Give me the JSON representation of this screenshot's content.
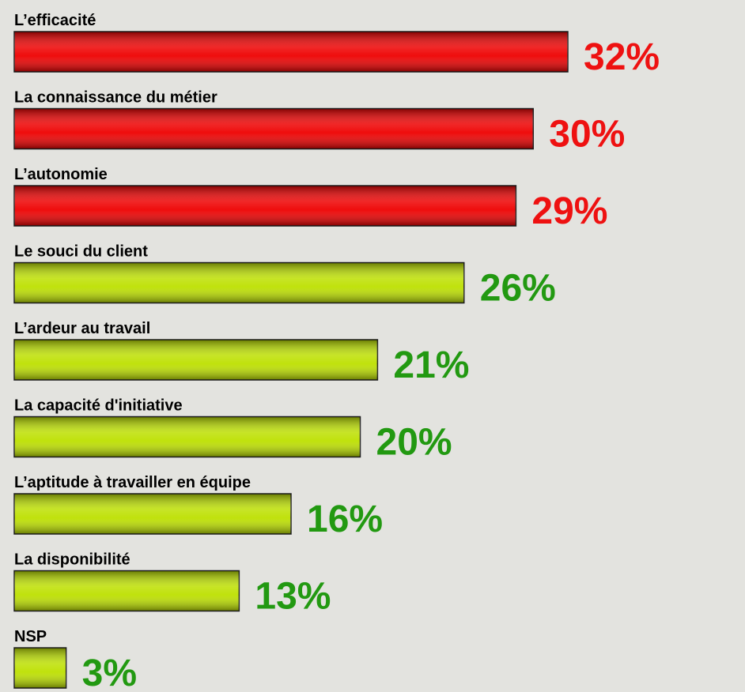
{
  "chart_data": {
    "type": "hbar",
    "categories": [
      "L’efficacité",
      "La connaissance du métier",
      "L’autonomie",
      "Le souci du client",
      "L’ardeur au travail",
      "La capacité d'initiative",
      "L’aptitude à travailler en équipe",
      "La disponibilité",
      "NSP"
    ],
    "values": [
      32,
      30,
      29,
      26,
      21,
      20,
      16,
      13,
      3
    ],
    "value_labels": [
      "32%",
      "30%",
      "29%",
      "26%",
      "21%",
      "20%",
      "16%",
      "13%",
      "3%"
    ],
    "colors": [
      "#ee0000",
      "#ee0000",
      "#ee0000",
      "#bde000",
      "#bde000",
      "#bde000",
      "#bde000",
      "#bde000",
      "#bde000"
    ],
    "label_colors": [
      "#ee1111",
      "#ee1111",
      "#ee1111",
      "#229911",
      "#229911",
      "#229911",
      "#229911",
      "#229911",
      "#229911"
    ]
  }
}
